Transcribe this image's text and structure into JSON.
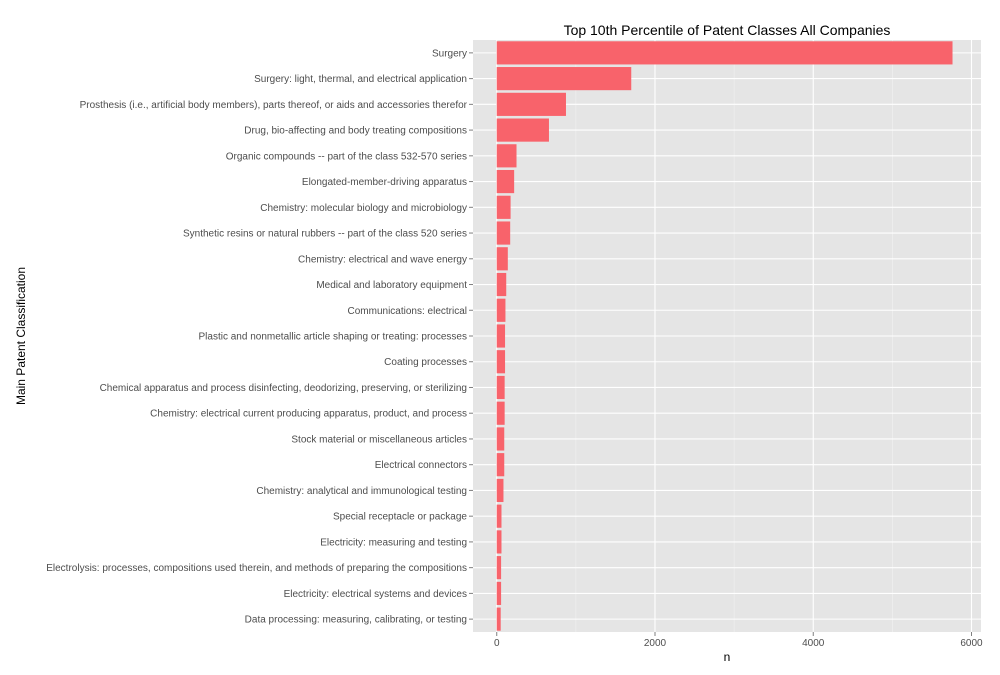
{
  "chart_data": {
    "type": "bar",
    "orientation": "horizontal",
    "title": "Top 10th Percentile of Patent Classes All Companies",
    "xlabel": "n",
    "ylabel": "Main Patent Classification",
    "xlim": [
      -300,
      6120
    ],
    "xticks": [
      0,
      2000,
      4000,
      6000
    ],
    "grid": true,
    "categories": [
      "Surgery",
      "Surgery: light, thermal, and electrical application",
      "Prosthesis (i.e., artificial body members), parts thereof, or aids and accessories therefor",
      "Drug, bio-affecting and body treating compositions",
      "Organic compounds -- part of the class 532-570 series",
      "Elongated-member-driving apparatus",
      "Chemistry: molecular biology and microbiology",
      "Synthetic resins or natural rubbers -- part of the class 520 series",
      "Chemistry: electrical and wave energy",
      "Medical and laboratory equipment",
      "Communications: electrical",
      "Plastic and nonmetallic article shaping or treating: processes",
      "Coating processes",
      "Chemical apparatus and process disinfecting, deodorizing, preserving, or sterilizing",
      "Chemistry: electrical current producing apparatus, product, and process",
      "Stock material or miscellaneous articles",
      "Electrical connectors",
      "Chemistry: analytical and immunological testing",
      "Special receptacle or package",
      "Electricity: measuring and testing",
      "Electrolysis: processes, compositions used therein, and methods of preparing the compositions",
      "Electricity: electrical systems and devices",
      "Data processing: measuring, calibrating, or testing"
    ],
    "values": [
      5760,
      1700,
      875,
      660,
      250,
      220,
      175,
      170,
      140,
      120,
      110,
      105,
      105,
      100,
      100,
      95,
      95,
      85,
      60,
      60,
      55,
      55,
      50
    ],
    "colors": {
      "bar": "#F8636B",
      "panel": "#E5E5E5",
      "grid_major": "#FFFFFF",
      "grid_minor": "#F2F2F2"
    }
  }
}
